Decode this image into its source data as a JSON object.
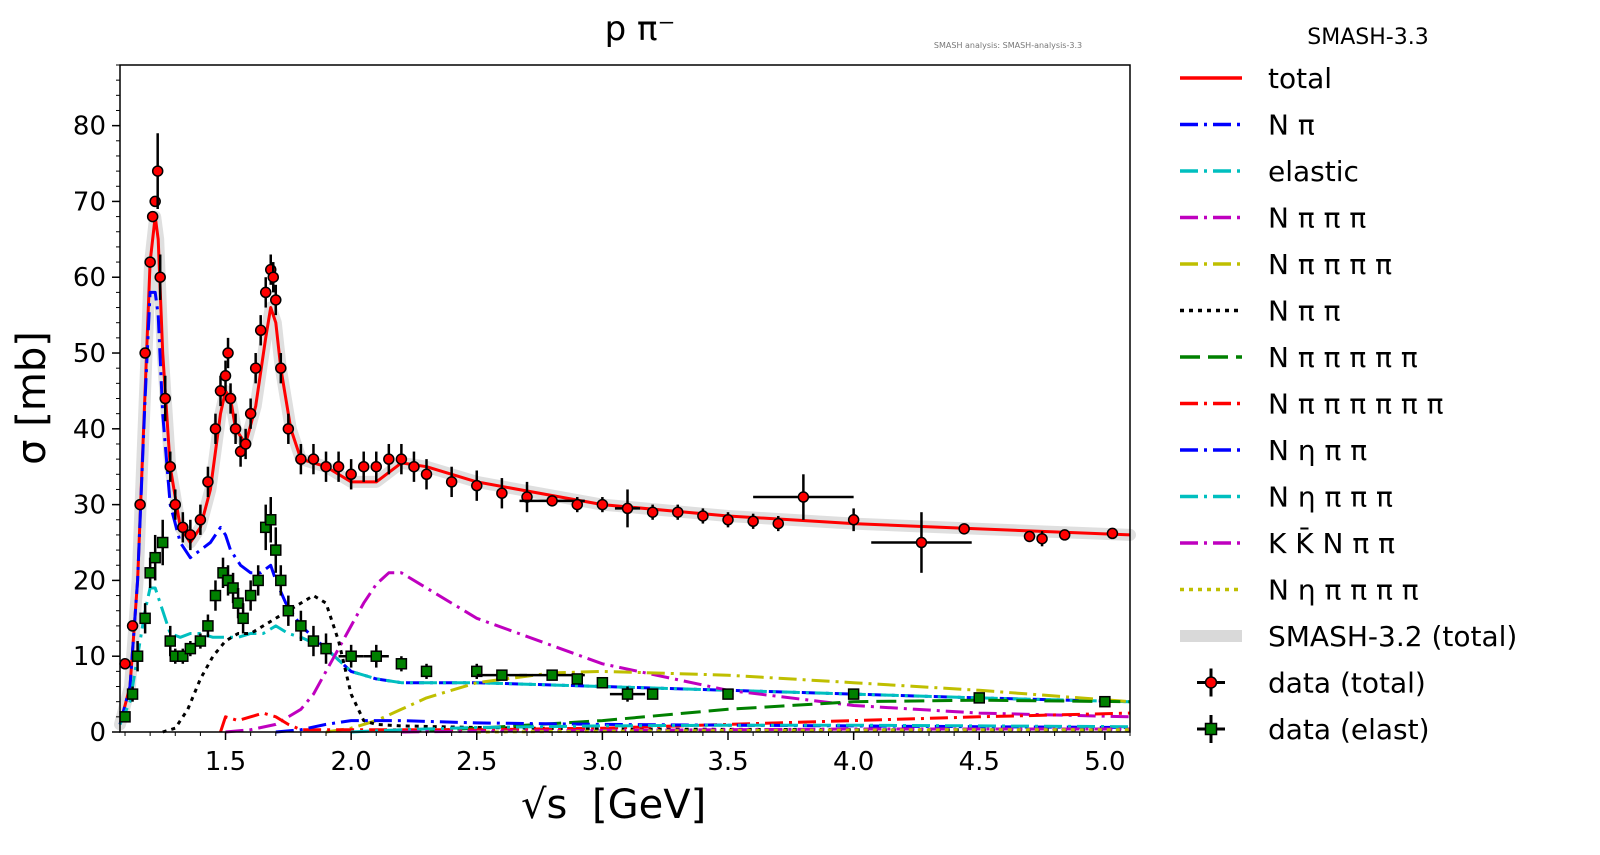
{
  "chart_data": {
    "type": "line",
    "title": "p π⁻",
    "subtitle": "SMASH analysis: SMASH-analysis-3.3",
    "xlabel": "[GeV]",
    "xlabel_symbol": "√s",
    "ylabel": "σ [mb]",
    "xlim": [
      1.08,
      5.1
    ],
    "ylim": [
      0,
      88
    ],
    "xticks": [
      1.5,
      2.0,
      2.5,
      3.0,
      3.5,
      4.0,
      4.5,
      5.0
    ],
    "xtick_labels": [
      "1.5",
      "2.0",
      "2.5",
      "3.0",
      "3.5",
      "4.0",
      "4.5",
      "5.0"
    ],
    "yticks": [
      0,
      10,
      20,
      30,
      40,
      50,
      60,
      70,
      80
    ],
    "ytick_labels": [
      "0",
      "10",
      "20",
      "30",
      "40",
      "50",
      "60",
      "70",
      "80"
    ],
    "legend_title": "SMASH-3.3",
    "legend_position": "outside right",
    "series": [
      {
        "name": "total",
        "color": "#ff0000",
        "dash": "solid",
        "width": 3,
        "x": [
          1.08,
          1.12,
          1.15,
          1.18,
          1.2,
          1.22,
          1.232,
          1.25,
          1.28,
          1.32,
          1.36,
          1.4,
          1.44,
          1.48,
          1.5,
          1.52,
          1.54,
          1.58,
          1.62,
          1.66,
          1.68,
          1.7,
          1.72,
          1.76,
          1.8,
          1.9,
          2.0,
          2.1,
          2.2,
          2.3,
          2.5,
          3.0,
          3.5,
          4.0,
          4.5,
          5.1
        ],
        "y": [
          1,
          6,
          20,
          45,
          62,
          68,
          65,
          50,
          35,
          27,
          25,
          27,
          32,
          42,
          45,
          44,
          40,
          38,
          43,
          52,
          56,
          54,
          48,
          40,
          36,
          35,
          33,
          33,
          35.5,
          35,
          33,
          30,
          28.5,
          27.5,
          26.8,
          26
        ]
      },
      {
        "name": "N π",
        "color": "#0000ff",
        "dash": "long-dash-dot",
        "width": 3,
        "x": [
          1.08,
          1.12,
          1.15,
          1.18,
          1.2,
          1.22,
          1.232,
          1.25,
          1.28,
          1.32,
          1.36,
          1.4,
          1.44,
          1.48,
          1.5,
          1.52,
          1.56,
          1.6,
          1.64,
          1.68,
          1.7,
          1.74,
          1.8,
          1.9,
          2.0,
          2.1,
          2.2,
          2.5,
          3.0,
          3.5,
          4.0,
          4.5,
          5.1
        ],
        "y": [
          1,
          6,
          20,
          44,
          58,
          58,
          55,
          42,
          30,
          25,
          23,
          24,
          25,
          27,
          26,
          24,
          22,
          21,
          21,
          22,
          20,
          17,
          14,
          11,
          8,
          7,
          6.5,
          6.5,
          6,
          5.5,
          5,
          4.5,
          4
        ]
      },
      {
        "name": "elastic",
        "color": "#00bfbf",
        "dash": "long-dash-dot",
        "width": 3,
        "x": [
          1.08,
          1.12,
          1.15,
          1.18,
          1.2,
          1.22,
          1.25,
          1.28,
          1.32,
          1.36,
          1.4,
          1.45,
          1.5,
          1.55,
          1.6,
          1.65,
          1.7,
          1.75,
          1.8,
          1.9,
          2.0,
          2.1,
          2.2,
          2.5,
          3.0,
          3.5,
          4.0,
          4.5,
          5.1
        ],
        "y": [
          1,
          4,
          10,
          16,
          19,
          19,
          16,
          13,
          12.5,
          13,
          13,
          12.5,
          12.5,
          12.5,
          13,
          13,
          14,
          13,
          12.5,
          11,
          8,
          7,
          6.5,
          6.5,
          6,
          5.5,
          5,
          4.5,
          4
        ]
      },
      {
        "name": "N π π π",
        "color": "#bf00bf",
        "dash": "long-dash-dot",
        "width": 3,
        "x": [
          1.5,
          1.6,
          1.7,
          1.8,
          1.85,
          1.9,
          1.95,
          2.0,
          2.05,
          2.1,
          2.15,
          2.2,
          2.3,
          2.5,
          3.0,
          3.5,
          4.0,
          4.5,
          5.1
        ],
        "y": [
          0,
          0.3,
          1,
          3,
          5,
          8,
          11,
          14,
          17,
          19.5,
          21,
          21,
          19,
          15,
          9,
          5.5,
          3.5,
          2.5,
          2
        ]
      },
      {
        "name": "N π π π π",
        "color": "#bfbf00",
        "dash": "long-dash-dot",
        "width": 3,
        "x": [
          1.9,
          2.0,
          2.1,
          2.2,
          2.3,
          2.5,
          2.8,
          3.0,
          3.5,
          4.0,
          4.5,
          5.1
        ],
        "y": [
          0,
          0.5,
          1.5,
          3,
          4.5,
          6.5,
          7.8,
          8,
          7.5,
          6.5,
          5.5,
          4
        ]
      },
      {
        "name": "N π π",
        "color": "#000000",
        "dash": "dotted",
        "width": 3,
        "x": [
          1.25,
          1.3,
          1.35,
          1.4,
          1.45,
          1.5,
          1.55,
          1.6,
          1.65,
          1.7,
          1.75,
          1.8,
          1.85,
          1.9,
          1.95,
          2.0,
          2.05,
          2.1,
          2.2,
          2.5,
          3.0,
          4.0,
          5.1
        ],
        "y": [
          0,
          0.5,
          3,
          7,
          10,
          12,
          13,
          13,
          14,
          15,
          16,
          17,
          18,
          17,
          12,
          5,
          1.5,
          1,
          0.8,
          0.6,
          0.4,
          0.3,
          0.3
        ]
      },
      {
        "name": "N π π π π π",
        "color": "#008000",
        "dash": "long-dash",
        "width": 3,
        "x": [
          2.2,
          2.5,
          3.0,
          3.5,
          4.0,
          4.5,
          5.1
        ],
        "y": [
          0,
          0.5,
          1.5,
          3,
          4,
          4.2,
          4
        ]
      },
      {
        "name": "N π π π π π π",
        "color": "#ff0000",
        "dash": "long-dash-dot",
        "width": 3,
        "x": [
          1.48,
          1.5,
          1.55,
          1.6,
          1.65,
          1.7,
          1.75,
          1.8,
          2.0,
          2.5,
          3.0,
          3.5,
          4.0,
          4.5,
          5.1
        ],
        "y": [
          0,
          2,
          1.5,
          2,
          2.5,
          2,
          1,
          0.3,
          0.3,
          0.3,
          0.5,
          1,
          1.5,
          2,
          2.5
        ]
      },
      {
        "name": "N η π π",
        "color": "#0000ff",
        "dash": "long-dash-dot",
        "width": 3,
        "x": [
          1.7,
          1.8,
          1.9,
          2.0,
          2.1,
          2.2,
          2.5,
          3.0,
          3.5,
          4.0,
          4.5,
          5.1
        ],
        "y": [
          0,
          0.3,
          1,
          1.5,
          1.5,
          1.5,
          1.2,
          1,
          0.9,
          0.8,
          0.7,
          0.6
        ]
      },
      {
        "name": "N η π π π",
        "color": "#00bfbf",
        "dash": "long-dash-dot",
        "width": 3,
        "x": [
          2.0,
          2.2,
          2.5,
          3.0,
          3.5,
          4.0,
          4.5,
          5.1
        ],
        "y": [
          0,
          0.3,
          0.6,
          0.8,
          0.9,
          0.9,
          0.8,
          0.7
        ]
      },
      {
        "name": "K K̄ N π π",
        "color": "#bf00bf",
        "dash": "long-dash-dot",
        "width": 3,
        "x": [
          2.2,
          2.5,
          3.0,
          3.5,
          4.0,
          4.5,
          5.1
        ],
        "y": [
          0,
          0.1,
          0.2,
          0.3,
          0.4,
          0.4,
          0.4
        ]
      },
      {
        "name": "N η π π π π",
        "color": "#bfbf00",
        "dash": "dotted",
        "width": 3,
        "x": [
          2.5,
          3.0,
          3.5,
          4.0,
          4.5,
          5.1
        ],
        "y": [
          0,
          0.1,
          0.2,
          0.25,
          0.3,
          0.3
        ]
      },
      {
        "name": "SMASH-3.2 (total)",
        "color": "#d9d9d9",
        "dash": "band",
        "width": 12,
        "x": [
          1.08,
          1.12,
          1.15,
          1.18,
          1.2,
          1.22,
          1.232,
          1.25,
          1.28,
          1.32,
          1.36,
          1.4,
          1.44,
          1.48,
          1.5,
          1.52,
          1.54,
          1.58,
          1.62,
          1.66,
          1.68,
          1.7,
          1.72,
          1.76,
          1.8,
          1.9,
          2.0,
          2.1,
          2.2,
          2.3,
          2.5,
          3.0,
          3.5,
          4.0,
          4.5,
          5.1
        ],
        "y": [
          1,
          6,
          20,
          45,
          62,
          68,
          65,
          50,
          35,
          27,
          25,
          27,
          32,
          42,
          45,
          44,
          40,
          38,
          43,
          52,
          56,
          54,
          48,
          40,
          36,
          35,
          33,
          33,
          35.5,
          35,
          33,
          30,
          28.5,
          27.5,
          26.8,
          26
        ]
      }
    ],
    "data_series": [
      {
        "name": "data (total)",
        "color": "#ff0000",
        "marker": "circle",
        "x": [
          1.1,
          1.13,
          1.16,
          1.18,
          1.2,
          1.21,
          1.22,
          1.23,
          1.24,
          1.26,
          1.28,
          1.3,
          1.33,
          1.36,
          1.4,
          1.43,
          1.46,
          1.48,
          1.5,
          1.51,
          1.52,
          1.54,
          1.56,
          1.58,
          1.6,
          1.62,
          1.64,
          1.66,
          1.68,
          1.69,
          1.7,
          1.72,
          1.75,
          1.8,
          1.85,
          1.9,
          1.95,
          2.0,
          2.05,
          2.1,
          2.15,
          2.2,
          2.25,
          2.3,
          2.4,
          2.5,
          2.6,
          2.7,
          2.8,
          2.9,
          3.0,
          3.1,
          3.2,
          3.3,
          3.4,
          3.5,
          3.6,
          3.7,
          3.8,
          4.0,
          4.27,
          4.44,
          4.7,
          4.75,
          4.84,
          5.03
        ],
        "y": [
          9,
          14,
          30,
          50,
          62,
          68,
          70,
          74,
          60,
          44,
          35,
          30,
          27,
          26,
          28,
          33,
          40,
          45,
          47,
          50,
          44,
          40,
          37,
          38,
          42,
          48,
          53,
          58,
          61,
          60,
          57,
          48,
          40,
          36,
          36,
          35,
          35,
          34,
          35,
          35,
          36,
          36,
          35,
          34,
          33,
          32.5,
          31.5,
          31,
          30.5,
          30,
          30,
          29.5,
          29,
          29,
          28.5,
          28,
          27.8,
          27.5,
          31,
          28,
          25,
          26.8,
          25.8,
          25.5,
          26,
          26.2
        ],
        "xerr": [
          0,
          0,
          0,
          0,
          0,
          0,
          0,
          0,
          0,
          0,
          0,
          0,
          0,
          0,
          0,
          0,
          0,
          0,
          0,
          0,
          0,
          0,
          0,
          0,
          0,
          0,
          0,
          0,
          0,
          0,
          0,
          0,
          0,
          0,
          0,
          0,
          0,
          0,
          0,
          0,
          0,
          0,
          0,
          0,
          0,
          0,
          0,
          0,
          0.13,
          0,
          0,
          0.05,
          0,
          0,
          0,
          0,
          0,
          0,
          0.2,
          0,
          0.2,
          0,
          0,
          0,
          0,
          0
        ],
        "yerr": [
          0,
          0,
          0,
          0,
          0,
          0,
          0,
          5,
          3,
          3,
          2,
          2,
          2,
          2,
          2,
          2,
          2,
          2,
          2,
          2,
          2,
          2,
          2,
          2,
          2,
          2,
          2,
          2,
          2,
          2,
          2,
          2,
          2,
          2,
          2,
          2,
          2,
          2,
          2,
          2,
          2,
          2,
          2,
          2,
          2,
          2,
          2,
          2,
          0.5,
          1,
          1,
          2.5,
          1,
          1,
          1,
          1,
          1,
          1,
          3,
          1.5,
          4,
          0.5,
          0.5,
          1,
          0.5,
          0.5
        ]
      },
      {
        "name": "data (elast)",
        "color": "#008000",
        "marker": "square",
        "x": [
          1.1,
          1.13,
          1.15,
          1.18,
          1.2,
          1.22,
          1.25,
          1.28,
          1.3,
          1.33,
          1.36,
          1.4,
          1.43,
          1.46,
          1.49,
          1.51,
          1.53,
          1.55,
          1.57,
          1.6,
          1.63,
          1.66,
          1.68,
          1.7,
          1.72,
          1.75,
          1.8,
          1.85,
          1.9,
          2.0,
          2.1,
          2.2,
          2.3,
          2.5,
          2.6,
          2.8,
          2.9,
          3.0,
          3.1,
          3.2,
          3.5,
          4.0,
          4.5,
          5.0
        ],
        "y": [
          2,
          5,
          10,
          15,
          21,
          23,
          25,
          12,
          10,
          10,
          11,
          12,
          14,
          18,
          21,
          20,
          19,
          17,
          15,
          18,
          20,
          27,
          28,
          24,
          20,
          16,
          14,
          12,
          11,
          10,
          10,
          9,
          8,
          8,
          7.5,
          7.5,
          7,
          6.5,
          5,
          5,
          5,
          5,
          4.5,
          4
        ],
        "xerr": [
          0,
          0,
          0,
          0,
          0,
          0,
          0,
          0,
          0,
          0,
          0,
          0,
          0,
          0,
          0,
          0,
          0,
          0,
          0,
          0,
          0,
          0,
          0,
          0,
          0,
          0,
          0,
          0,
          0,
          0.05,
          0.05,
          0,
          0,
          0,
          0.1,
          0.13,
          0,
          0,
          0.07,
          0,
          0,
          0,
          0,
          0
        ],
        "yerr": [
          0.5,
          1,
          2,
          2,
          2,
          3,
          3,
          2,
          1,
          1,
          1,
          1,
          1.5,
          2,
          2,
          2,
          2,
          2,
          2,
          2,
          2,
          3,
          3,
          3,
          2,
          2,
          2,
          2,
          2,
          1.5,
          1.5,
          1,
          1,
          1,
          0.5,
          0.5,
          0.5,
          0.5,
          1,
          0.5,
          0.5,
          0.5,
          0.5,
          0.5
        ]
      }
    ]
  }
}
